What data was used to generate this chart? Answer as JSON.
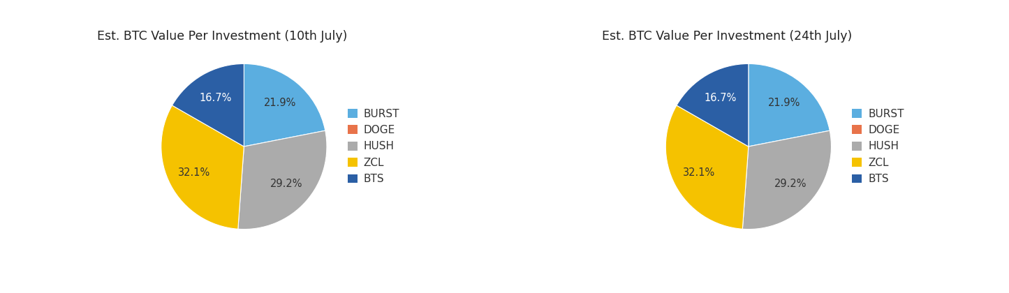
{
  "chart1_title": "Est. BTC Value Per Investment (10th July)",
  "chart2_title": "Est. BTC Value Per Investment (24th July)",
  "labels": [
    "BURST",
    "HUSH",
    "ZCL",
    "BTS"
  ],
  "values": [
    21.9,
    29.2,
    32.1,
    16.7
  ],
  "colors": [
    "#5BAEE0",
    "#ABABAB",
    "#F5C200",
    "#2B5FA5"
  ],
  "legend_labels": [
    "BURST",
    "DOGE",
    "HUSH",
    "ZCL",
    "BTS"
  ],
  "legend_colors": [
    "#5BAEE0",
    "#E8734A",
    "#ABABAB",
    "#F5C200",
    "#2B5FA5"
  ],
  "autopct_colors": [
    "#333333",
    "#333333",
    "#333333",
    "#ffffff"
  ],
  "background_color": "#ffffff",
  "border_color": "#c8c8c8",
  "title_fontsize": 12.5,
  "legend_fontsize": 11,
  "autopct_fontsize": 10.5
}
